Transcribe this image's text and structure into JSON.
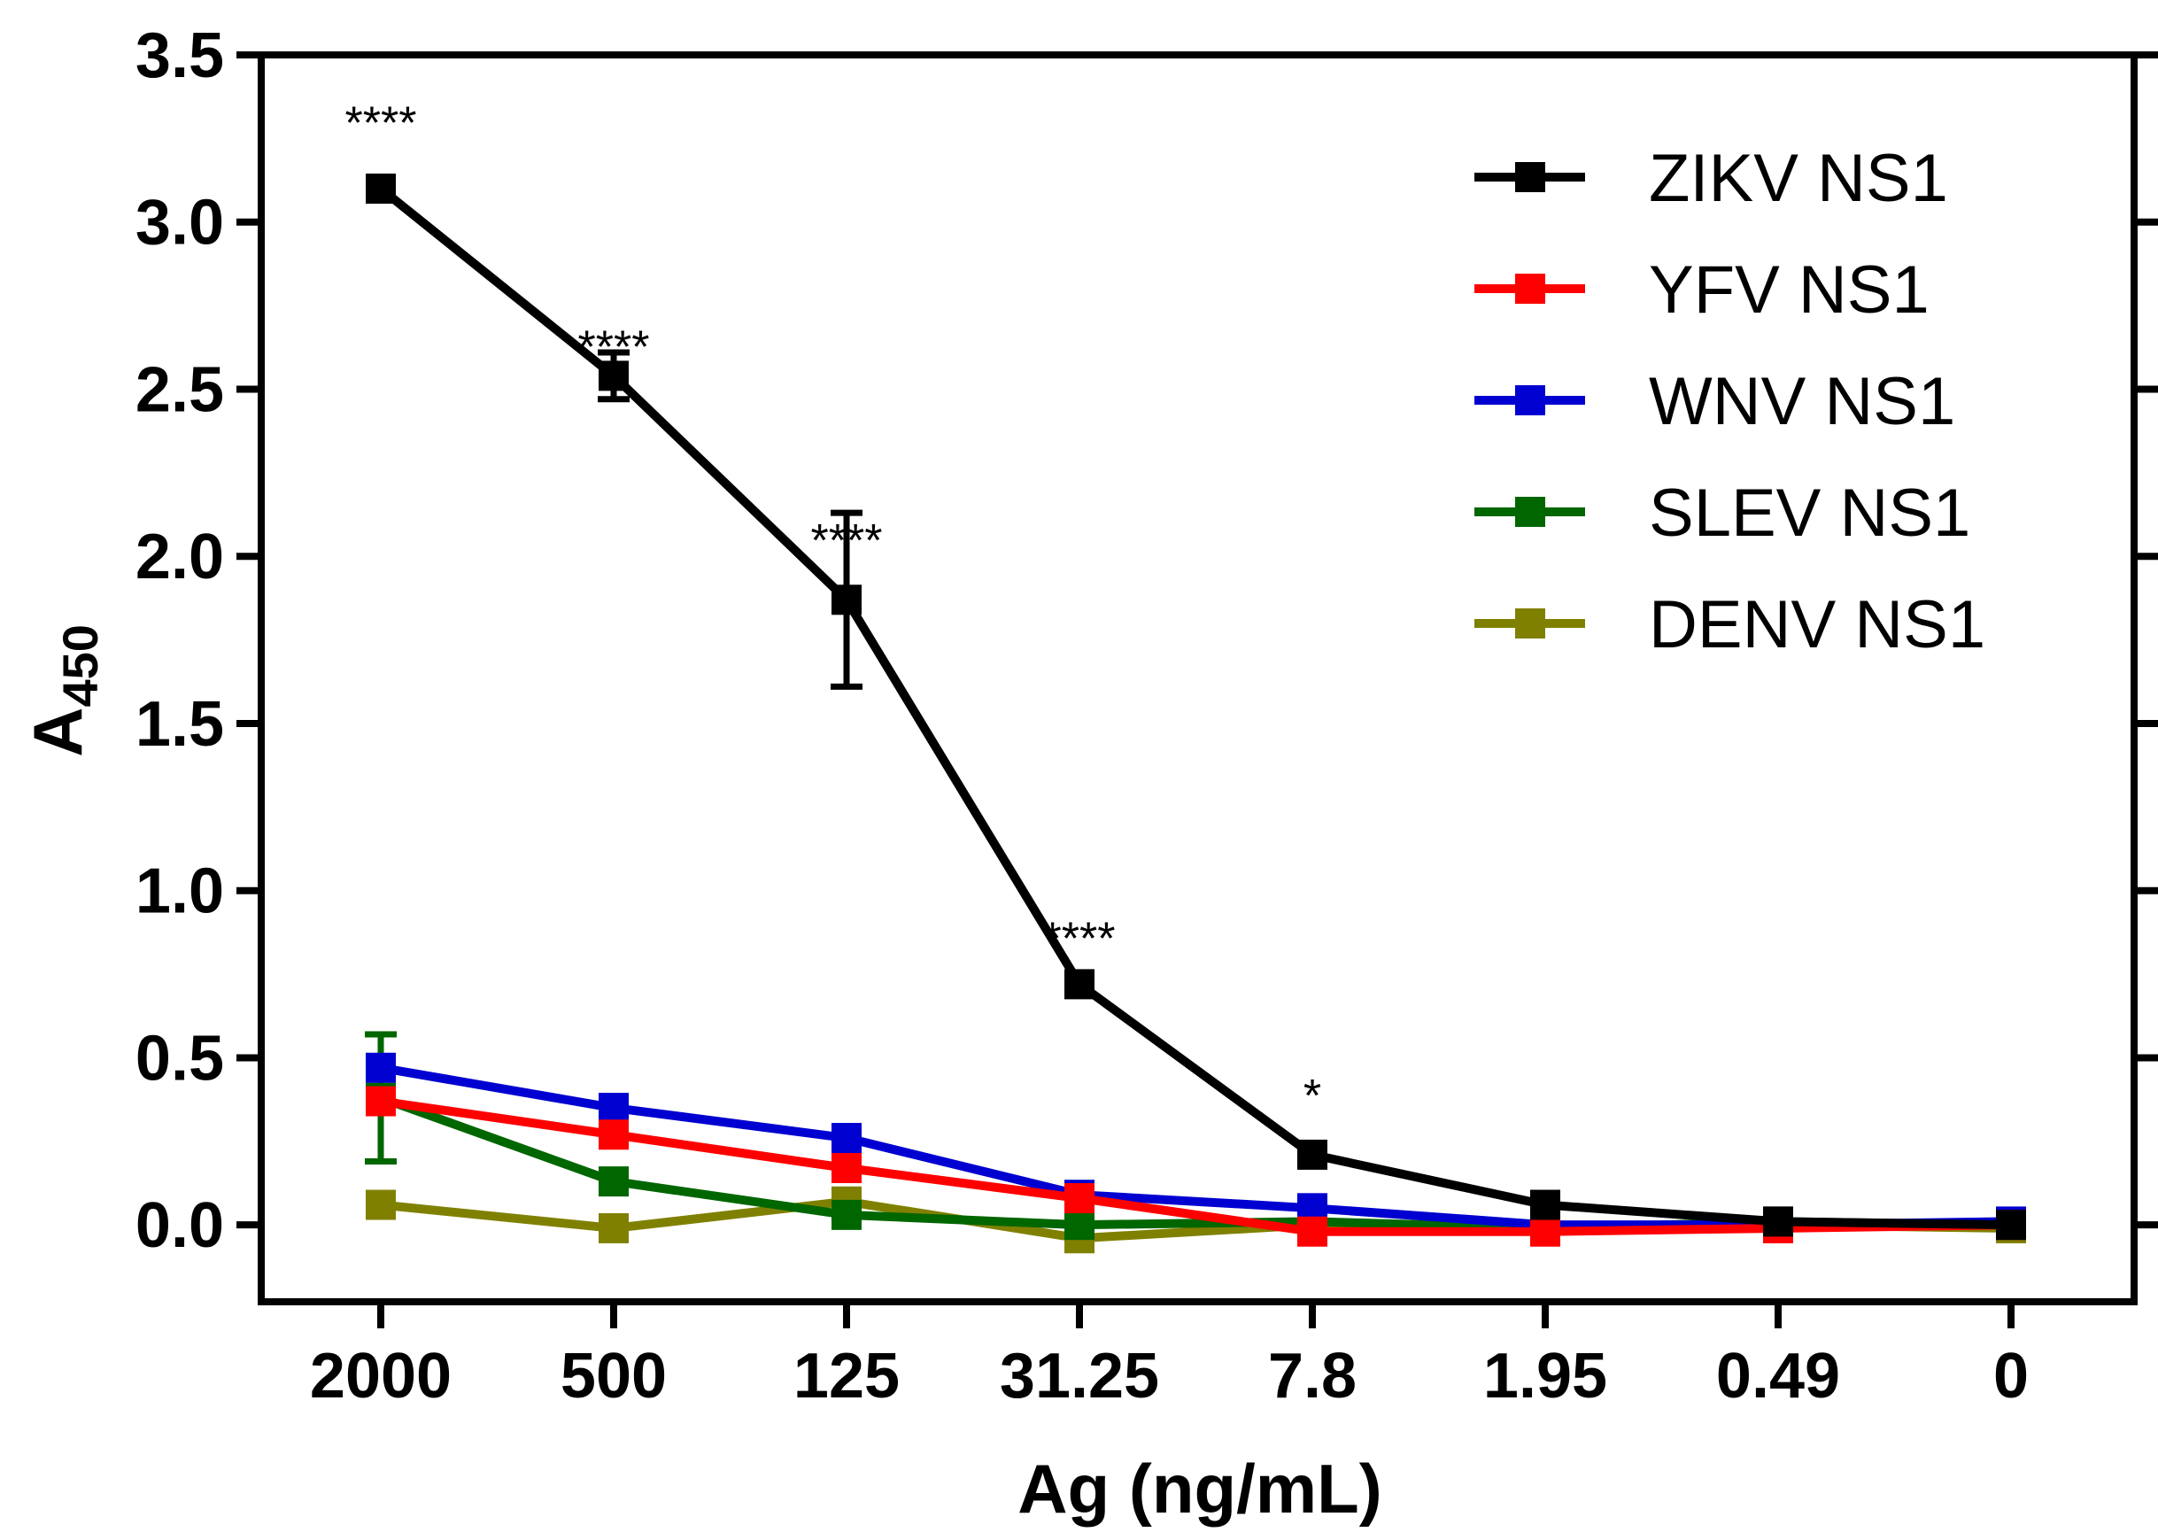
{
  "chart_data": {
    "type": "line",
    "title": "",
    "xlabel": "Ag (ng/mL)",
    "ylabel": "A",
    "ylabel_sub": "450",
    "categories": [
      "2000",
      "500",
      "125",
      "31.25",
      "7.8",
      "1.95",
      "0.49",
      "0"
    ],
    "yticks": [
      "0.0",
      "0.5",
      "1.0",
      "1.5",
      "2.0",
      "2.5",
      "3.0",
      "3.5"
    ],
    "ylim": [
      -0.23,
      3.5
    ],
    "grid": false,
    "legend_position": "top-right",
    "series": [
      {
        "name": "ZIKV NS1",
        "color": "#000000",
        "values": [
          3.1,
          2.54,
          1.87,
          0.72,
          0.21,
          0.06,
          0.01,
          0.0
        ],
        "errors": [
          0.0,
          0.07,
          0.26,
          0.0,
          0.0,
          0.0,
          0.0,
          0.0
        ]
      },
      {
        "name": "YFV NS1",
        "color": "#ff0000",
        "values": [
          0.37,
          0.27,
          0.17,
          0.08,
          -0.02,
          -0.02,
          -0.01,
          0.0
        ],
        "errors": [
          0,
          0,
          0,
          0,
          0,
          0,
          0,
          0
        ]
      },
      {
        "name": "WNV NS1",
        "color": "#0000d0",
        "values": [
          0.47,
          0.35,
          0.26,
          0.09,
          0.05,
          0.0,
          0.0,
          0.01
        ],
        "errors": [
          0,
          0,
          0,
          0,
          0,
          0,
          0,
          0
        ]
      },
      {
        "name": "SLEV NS1",
        "color": "#006600",
        "values": [
          0.38,
          0.13,
          0.03,
          0.0,
          0.01,
          -0.01,
          0.01,
          0.0
        ],
        "errors": [
          0.19,
          0,
          0,
          0,
          0,
          0,
          0,
          0
        ]
      },
      {
        "name": "DENV NS1",
        "color": "#808000",
        "values": [
          0.06,
          -0.01,
          0.07,
          -0.04,
          0.0,
          -0.01,
          0.0,
          -0.01
        ],
        "errors": [
          0,
          0,
          0,
          0,
          0,
          0,
          0,
          0
        ]
      }
    ],
    "annotations": [
      {
        "category_index": 0,
        "y": 3.25,
        "text": "****"
      },
      {
        "category_index": 1,
        "y": 2.58,
        "text": "****"
      },
      {
        "category_index": 2,
        "y": 2.0,
        "text": "****"
      },
      {
        "category_index": 3,
        "y": 0.81,
        "text": "****"
      },
      {
        "category_index": 4,
        "y": 0.34,
        "text": "*"
      }
    ]
  }
}
